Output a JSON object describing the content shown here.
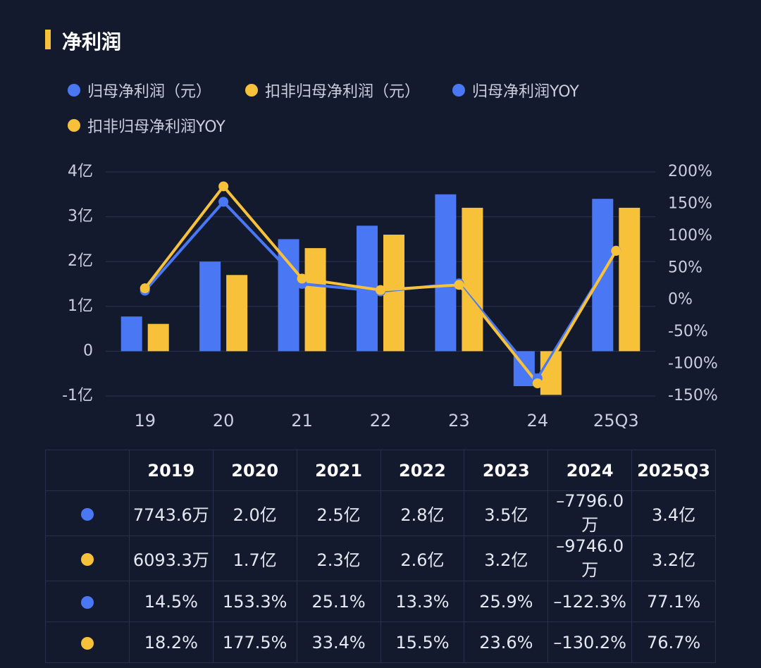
{
  "header": {
    "title": "净利润"
  },
  "colors": {
    "blue": "#4a78f5",
    "yellow": "#f7c23a",
    "grid": "#2a3352",
    "text": "#c9cfdd"
  },
  "legend": [
    {
      "label": "归母净利润（元）",
      "color": "#4a78f5"
    },
    {
      "label": "扣非归母净利润（元）",
      "color": "#f7c23a"
    },
    {
      "label": "归母净利润YOY",
      "color": "#4a78f5"
    },
    {
      "label": "扣非归母净利润YOY",
      "color": "#f7c23a"
    }
  ],
  "chart_data": {
    "type": "bar",
    "categories": [
      "19",
      "20",
      "21",
      "22",
      "23",
      "24",
      "25Q3"
    ],
    "series": [
      {
        "name": "归母净利润（元）",
        "kind": "bar",
        "axis": "left",
        "color": "#4a78f5",
        "values": [
          0.774,
          2.0,
          2.5,
          2.8,
          3.5,
          -0.78,
          3.4
        ]
      },
      {
        "name": "扣非归母净利润（元）",
        "kind": "bar",
        "axis": "left",
        "color": "#f7c23a",
        "values": [
          0.609,
          1.7,
          2.3,
          2.6,
          3.2,
          -0.975,
          3.2
        ]
      },
      {
        "name": "归母净利润YOY",
        "kind": "line",
        "axis": "right",
        "color": "#4a78f5",
        "values": [
          14.5,
          153.3,
          25.1,
          13.3,
          25.9,
          -122.3,
          77.1
        ]
      },
      {
        "name": "扣非归母净利润YOY",
        "kind": "line",
        "axis": "right",
        "color": "#f7c23a",
        "values": [
          18.2,
          177.5,
          33.4,
          15.5,
          23.6,
          -130.2,
          76.7
        ]
      }
    ],
    "left_axis": {
      "ticks": [
        4,
        3,
        2,
        1,
        0,
        -1
      ],
      "tick_labels": [
        "4亿",
        "3亿",
        "2亿",
        "1亿",
        "0",
        "-1亿"
      ],
      "ylim": [
        -1,
        4
      ]
    },
    "right_axis": {
      "ticks": [
        200,
        150,
        100,
        50,
        0,
        -50,
        -100,
        -150
      ],
      "tick_labels": [
        "200%",
        "150%",
        "100%",
        "50%",
        "0%",
        "-50%",
        "-100%",
        "-150%"
      ],
      "ylim": [
        -150,
        200
      ]
    },
    "grid": true,
    "legend_position": "top-left"
  },
  "table": {
    "headers": [
      "2019",
      "2020",
      "2021",
      "2022",
      "2023",
      "2024",
      "2025Q3"
    ],
    "rows": [
      {
        "color": "#4a78f5",
        "cells": [
          "7743.6万",
          "2.0亿",
          "2.5亿",
          "2.8亿",
          "3.5亿",
          "–7796.0万",
          "3.4亿"
        ]
      },
      {
        "color": "#f7c23a",
        "cells": [
          "6093.3万",
          "1.7亿",
          "2.3亿",
          "2.6亿",
          "3.2亿",
          "–9746.0万",
          "3.2亿"
        ]
      },
      {
        "color": "#4a78f5",
        "cells": [
          "14.5%",
          "153.3%",
          "25.1%",
          "13.3%",
          "25.9%",
          "–122.3%",
          "77.1%"
        ]
      },
      {
        "color": "#f7c23a",
        "cells": [
          "18.2%",
          "177.5%",
          "33.4%",
          "15.5%",
          "23.6%",
          "–130.2%",
          "76.7%"
        ]
      }
    ]
  }
}
